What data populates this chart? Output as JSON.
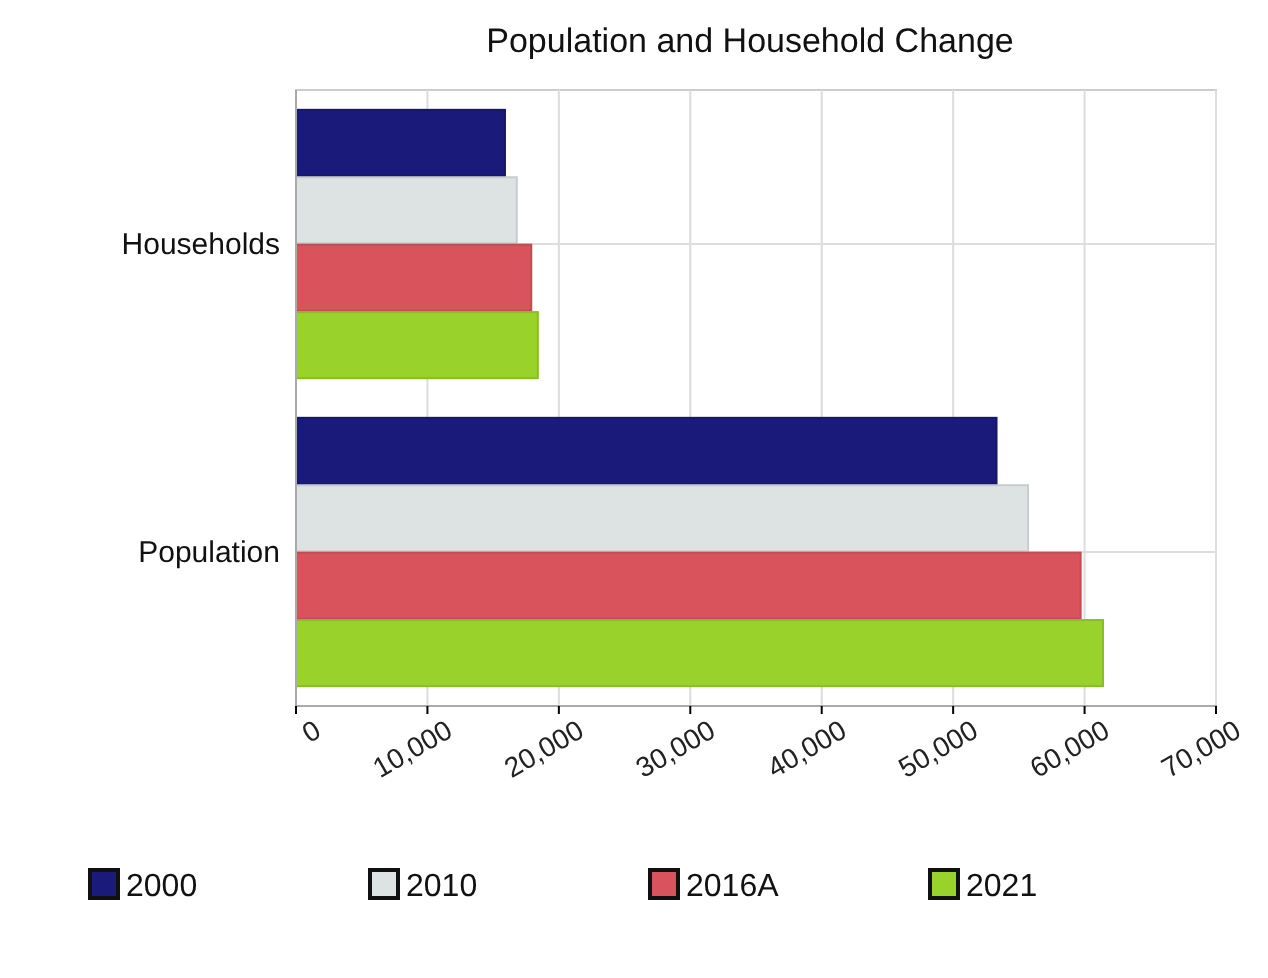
{
  "chart_data": {
    "type": "bar",
    "orientation": "horizontal",
    "title": "Population and Household Change",
    "categories": [
      "Households",
      "Population"
    ],
    "series": [
      {
        "name": "2000",
        "color": "#1a1a7a",
        "values": [
          15900,
          53300
        ]
      },
      {
        "name": "2010",
        "color": "#dde3e3",
        "values": [
          16800,
          55700
        ]
      },
      {
        "name": "2016A",
        "color": "#d9535c",
        "values": [
          17900,
          59700
        ]
      },
      {
        "name": "2021",
        "color": "#99d22a",
        "values": [
          18400,
          61400
        ]
      }
    ],
    "xlim": [
      0,
      70000
    ],
    "xticks": [
      0,
      {
        "value": 10000,
        "label": "10,000"
      },
      {
        "value": 20000,
        "label": "20,000"
      },
      {
        "value": 30000,
        "label": "30,000"
      },
      {
        "value": 40000,
        "label": "40,000"
      },
      {
        "value": 50000,
        "label": "50,000"
      },
      {
        "value": 60000,
        "label": "60,000"
      },
      {
        "value": 70000,
        "label": "70,000"
      }
    ],
    "grid": true,
    "legend": "bottom"
  }
}
